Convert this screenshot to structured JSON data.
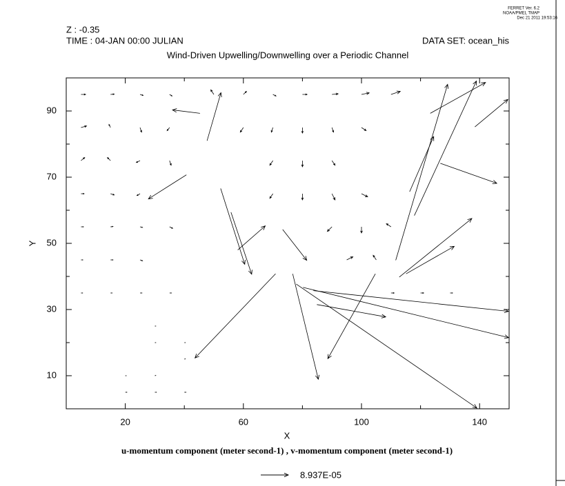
{
  "chart_data": {
    "type": "quiver",
    "stamp": [
      "FERRET Ver. 6.2",
      "NOAA/PMEL TMAP",
      "Dec 21 2011 19:53:16"
    ],
    "header_left": [
      "Z : -0.35",
      "TIME : 04-JAN 00:00 JULIAN"
    ],
    "header_right": "DATA SET: ocean_his",
    "title": "Wind-Driven Upwelling/Downwelling over a Periodic Channel",
    "x_label": "X",
    "y_label": "Y",
    "caption": "u-momentum component (meter second-1) , v-momentum component (meter second-1)",
    "reference": {
      "value": 8.937e-05,
      "label": "8.937E-05"
    },
    "xlim": [
      0,
      150
    ],
    "ylim": [
      0,
      100
    ],
    "xticks": [
      20,
      60,
      100,
      140
    ],
    "xminorticks": [
      40,
      80,
      120
    ],
    "yticks": [
      10,
      30,
      50,
      70,
      90
    ],
    "yminorticks": [
      20,
      40,
      60,
      80
    ],
    "color": "#000000",
    "x": [
      70.9,
      76.7,
      104.7,
      77.9,
      80.2,
      83.7,
      52.3,
      126.7,
      111.6,
      117.9,
      115.1,
      112.8,
      45.3,
      40.7,
      138.4,
      84.9,
      58.1,
      73.3,
      55.8,
      116.3,
      123.3,
      47.7,
      5,
      15,
      25,
      35,
      5,
      15,
      25,
      35,
      5,
      15,
      25,
      35,
      5,
      15,
      25,
      5,
      15,
      25,
      35,
      5,
      15,
      25,
      5,
      15,
      25,
      35,
      50,
      60,
      70,
      80,
      90,
      100,
      110,
      60,
      70,
      80,
      90,
      100,
      70,
      80,
      90,
      70,
      80,
      90,
      100,
      90,
      100,
      110,
      95,
      105,
      110,
      120,
      130,
      20,
      30,
      40,
      20,
      30,
      30,
      40,
      30,
      40
    ],
    "y": [
      40.8,
      40.8,
      40.8,
      37.7,
      36.7,
      35.7,
      66.6,
      74.2,
      44.9,
      58.4,
      40.8,
      39.8,
      89.3,
      70.7,
      85.2,
      31.5,
      48.0,
      54.2,
      59.4,
      65.6,
      89.3,
      81.0,
      95,
      95,
      95,
      95,
      85,
      85,
      85,
      85,
      75,
      75,
      75,
      75,
      65,
      65,
      65,
      55,
      55,
      55,
      55,
      45,
      45,
      45,
      35,
      35,
      35,
      35,
      95,
      95,
      95,
      95,
      95,
      95,
      95,
      85,
      85,
      85,
      85,
      85,
      75,
      75,
      75,
      65,
      65,
      65,
      65,
      55,
      55,
      55,
      45,
      45,
      35,
      35,
      35,
      5,
      5,
      5,
      10,
      10,
      20,
      20,
      25,
      15
    ],
    "u": [
      -0.000261,
      8.3e-05,
      -0.000154,
      0.000585,
      0.000666,
      0.000632,
      7.8e-05,
      0.000183,
      0.000168,
      0.000201,
      0.000156,
      0.000235,
      -8.9e-05,
      -0.000123,
      0.000107,
      0.000223,
      8.9e-05,
      7.8e-05,
      6.7e-05,
      7.8e-05,
      0.000179,
      4.5e-05,
      1.5e-05,
      1.2e-05,
      1e-05,
      8e-06,
      1.8e-05,
      -5e-06,
      5e-06,
      -8e-06,
      1.2e-05,
      -1e-05,
      -1.2e-05,
      5e-06,
      1e-05,
      1.2e-05,
      -1e-05,
      8e-06,
      8e-06,
      8e-06,
      1e-05,
      6e-06,
      8e-06,
      8e-06,
      5e-06,
      5e-06,
      6e-06,
      6e-06,
      -1e-05,
      1e-05,
      1e-05,
      1.5e-05,
      2e-05,
      2.5e-05,
      3e-05,
      -1e-05,
      -5e-06,
      0,
      5e-06,
      1.5e-05,
      -1e-05,
      0,
      1e-05,
      -1e-05,
      0,
      1e-05,
      2e-05,
      -1.5e-05,
      0,
      -1.5e-05,
      2e-05,
      -1e-05,
      1e-05,
      1e-05,
      8e-06,
      5e-06,
      5e-06,
      5e-06,
      3e-06,
      3e-06,
      3e-06,
      3e-06,
      3e-06,
      3e-06
    ],
    "v": [
      -0.000273,
      -0.000342,
      -0.000275,
      -0.000402,
      -0.000163,
      -6.7e-05,
      -0.000246,
      -6.5e-05,
      0.00057,
      0.000436,
      8.9e-05,
      0.00019,
      1.1e-05,
      -7.8e-05,
      8.9e-05,
      -4e-05,
      7.8e-05,
      -0.0001,
      -0.000201,
      0.000179,
      0.0001,
      0.000156,
      0,
      1e-06,
      -3e-06,
      -5e-06,
      5e-06,
      1e-05,
      -1.5e-05,
      -1e-05,
      1e-05,
      1e-05,
      -6e-06,
      -1.5e-05,
      0,
      -4e-06,
      -6e-06,
      0,
      1e-06,
      -2e-06,
      -5e-06,
      0,
      0,
      -3e-06,
      0,
      0,
      0,
      0,
      1.5e-05,
      1e-05,
      -5e-06,
      0,
      2e-06,
      5e-06,
      1e-05,
      -1.5e-05,
      -1.5e-05,
      -1.8e-05,
      -1.5e-05,
      -1e-05,
      -1.5e-05,
      -2e-05,
      -1.5e-05,
      -1.5e-05,
      -2e-05,
      -2e-05,
      -1e-05,
      -1.5e-05,
      -2e-05,
      1e-05,
      1e-05,
      1.5e-05,
      0,
      0,
      0,
      0,
      0,
      0,
      0,
      1e-06,
      0,
      0,
      0,
      1e-06
    ]
  }
}
